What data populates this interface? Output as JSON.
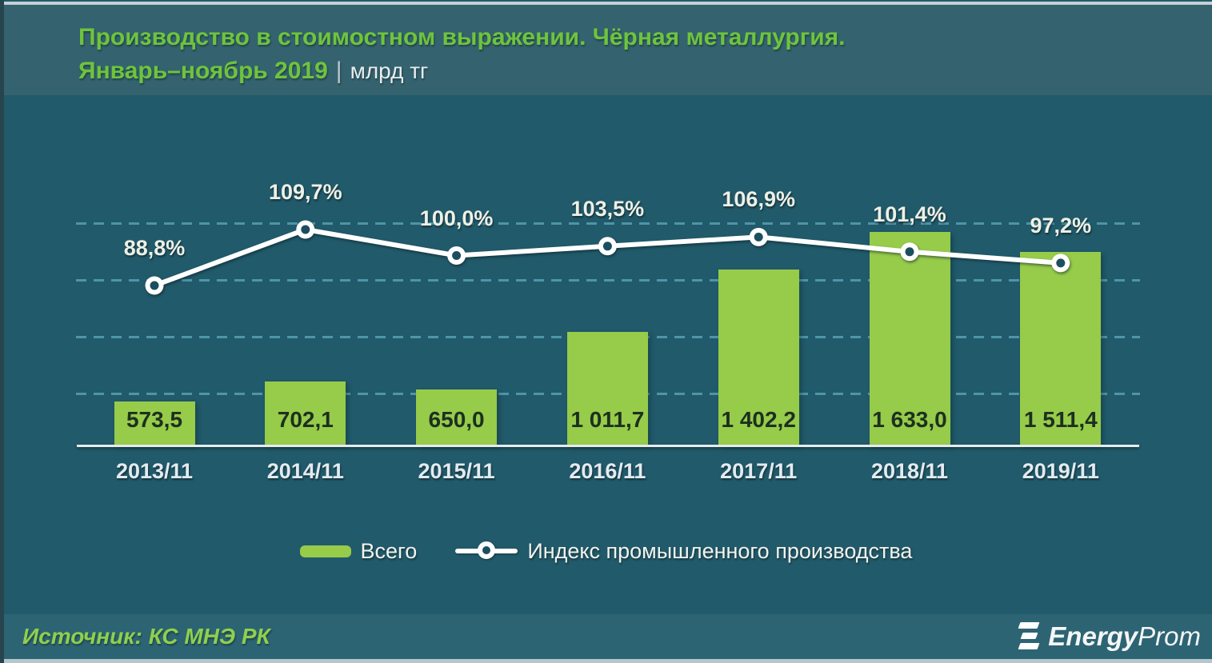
{
  "chart_data": {
    "type": "combo-bar-line",
    "title": "Производство в стоимостном выражении. Чёрная металлургия.",
    "subtitle_period": "Январь–ноябрь 2019",
    "subtitle_separator": "|",
    "unit": "млрд тг",
    "categories": [
      "2013/11",
      "2014/11",
      "2015/11",
      "2016/11",
      "2017/11",
      "2018/11",
      "2019/11"
    ],
    "series": [
      {
        "name": "Всего",
        "type": "bar",
        "color": "#97cb4a",
        "values": [
          573.5,
          702.1,
          650.0,
          1011.7,
          1402.2,
          1633.0,
          1511.4
        ],
        "value_labels": [
          "573,5",
          "702,1",
          "650,0",
          "1 011,7",
          "1 402,2",
          "1 633,0",
          "1 511,4"
        ]
      },
      {
        "name": "Индекс промышленного производства",
        "type": "line",
        "color": "#ffffff",
        "marker_fill": "#1b4f60",
        "values": [
          88.8,
          109.7,
          100.0,
          103.5,
          106.9,
          101.4,
          97.2
        ],
        "value_labels": [
          "88,8%",
          "109,7%",
          "100,0%",
          "103,5%",
          "106,9%",
          "101,4%",
          "97,2%"
        ]
      }
    ],
    "bar_axis_range": [
      300,
      1700
    ],
    "line_axis_range_pct": [
      85,
      113
    ],
    "grid": "dashed-horizontal",
    "legend_position": "bottom"
  },
  "footer": {
    "source": "Источник: КС МНЭ РК",
    "logo_bold": "Energy",
    "logo_light": "Prom"
  }
}
